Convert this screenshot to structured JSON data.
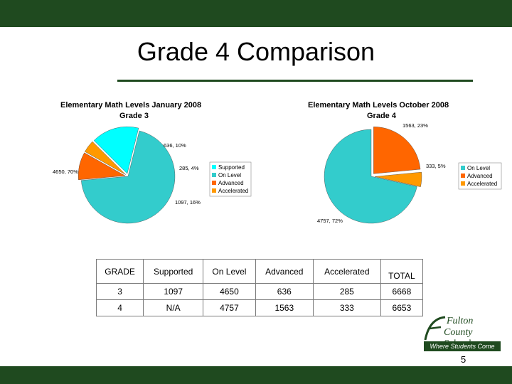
{
  "slide": {
    "title": "Grade 4 Comparison",
    "page_number": "5",
    "colors": {
      "frame": "#1f4a1f",
      "supported": "#00ffff",
      "on_level": "#33cccc",
      "advanced": "#ff6600",
      "accelerated": "#ff9900"
    }
  },
  "logo": {
    "line1": "Fulton",
    "line2": "County Schools",
    "tagline": "Where Students Come First"
  },
  "chart_data": [
    {
      "type": "pie",
      "title": "Elementary Math Levels  January 2008",
      "subtitle": "Grade 3",
      "slices": [
        {
          "name": "On Level",
          "value": 4650,
          "label": "4650, 70%",
          "color": "#33cccc"
        },
        {
          "name": "Advanced",
          "value": 636,
          "label": "636, 10%",
          "color": "#ff6600"
        },
        {
          "name": "Accelerated",
          "value": 285,
          "label": "285, 4%",
          "color": "#ff9900"
        },
        {
          "name": "Supported",
          "value": 1097,
          "label": "1097, 16%",
          "color": "#00ffff"
        }
      ],
      "legend": [
        "Supported",
        "On Level",
        "Advanced",
        "Accelerated"
      ],
      "legend_placement": "right"
    },
    {
      "type": "pie",
      "title": "Elementary Math Levels  October 2008",
      "subtitle": "Grade 4",
      "slices": [
        {
          "name": "Advanced",
          "value": 1563,
          "label": "1563, 23%",
          "color": "#ff6600"
        },
        {
          "name": "Accelerated",
          "value": 333,
          "label": "333, 5%",
          "color": "#ff9900"
        },
        {
          "name": "On Level",
          "value": 4757,
          "label": "4757, 72%",
          "color": "#33cccc"
        }
      ],
      "legend": [
        "On Level",
        "Advanced",
        "Accelerated"
      ],
      "legend_placement": "right"
    }
  ],
  "table": {
    "headers": [
      "GRADE",
      "Supported",
      "On Level",
      "Advanced",
      "Accelerated",
      "TOTAL"
    ],
    "rows": [
      [
        "3",
        "1097",
        "4650",
        "636",
        "285",
        "6668"
      ],
      [
        "4",
        "N/A",
        "4757",
        "1563",
        "333",
        "6653"
      ]
    ]
  }
}
